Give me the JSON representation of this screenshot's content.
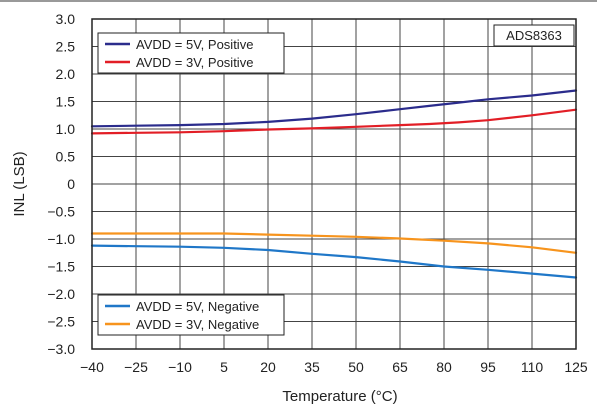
{
  "chart_data": {
    "type": "line",
    "title": "",
    "xlabel": "Temperature (°C)",
    "ylabel": "INL (LSB)",
    "xlim": [
      -40,
      125
    ],
    "ylim": [
      -3.0,
      3.0
    ],
    "x_ticks": [
      -40,
      -25,
      -10,
      5,
      20,
      35,
      50,
      65,
      80,
      95,
      110,
      125
    ],
    "x_tick_labels": [
      "−40",
      "−25",
      "−10",
      "5",
      "20",
      "35",
      "50",
      "65",
      "80",
      "95",
      "110",
      "125"
    ],
    "y_ticks": [
      3.0,
      2.5,
      2.0,
      1.5,
      1.0,
      0.5,
      0,
      -0.5,
      -1.0,
      -1.5,
      -2.0,
      -2.5,
      -3.0
    ],
    "y_tick_labels": [
      "3.0",
      "2.5",
      "2.0",
      "1.5",
      "1.0",
      "0.5",
      "0",
      "−0.5",
      "−1.0",
      "−1.5",
      "−2.0",
      "−2.5",
      "−3.0"
    ],
    "grid": true,
    "annotation": "ADS8363",
    "legends": [
      {
        "placement": "top-left",
        "entries": [
          "AVDD = 5V, Positive",
          "AVDD = 3V, Positive"
        ]
      },
      {
        "placement": "bottom-left",
        "entries": [
          "AVDD = 5V, Negative",
          "AVDD = 3V, Negative"
        ]
      }
    ],
    "series": [
      {
        "name": "AVDD = 5V, Positive",
        "color": "#2b2c8c",
        "x": [
          -40,
          -25,
          -10,
          5,
          20,
          35,
          50,
          65,
          75,
          85,
          95,
          110,
          125
        ],
        "y": [
          1.05,
          1.06,
          1.07,
          1.09,
          1.13,
          1.19,
          1.27,
          1.36,
          1.42,
          1.48,
          1.54,
          1.61,
          1.7
        ]
      },
      {
        "name": "AVDD = 3V, Positive",
        "color": "#e21e26",
        "x": [
          -40,
          -25,
          -10,
          5,
          20,
          35,
          50,
          65,
          75,
          85,
          95,
          110,
          125
        ],
        "y": [
          0.92,
          0.93,
          0.94,
          0.96,
          0.99,
          1.01,
          1.04,
          1.07,
          1.09,
          1.12,
          1.16,
          1.25,
          1.35
        ]
      },
      {
        "name": "AVDD = 5V, Negative",
        "color": "#1f77c8",
        "x": [
          -40,
          -25,
          -10,
          5,
          20,
          35,
          50,
          65,
          80,
          95,
          110,
          125
        ],
        "y": [
          -1.12,
          -1.13,
          -1.14,
          -1.16,
          -1.2,
          -1.27,
          -1.33,
          -1.41,
          -1.5,
          -1.56,
          -1.63,
          -1.7
        ]
      },
      {
        "name": "AVDD = 3V, Negative",
        "color": "#f7941d",
        "x": [
          -40,
          -25,
          -10,
          5,
          20,
          35,
          50,
          65,
          80,
          95,
          110,
          125
        ],
        "y": [
          -0.9,
          -0.9,
          -0.9,
          -0.9,
          -0.92,
          -0.94,
          -0.96,
          -0.99,
          -1.03,
          -1.08,
          -1.15,
          -1.25
        ]
      }
    ]
  }
}
